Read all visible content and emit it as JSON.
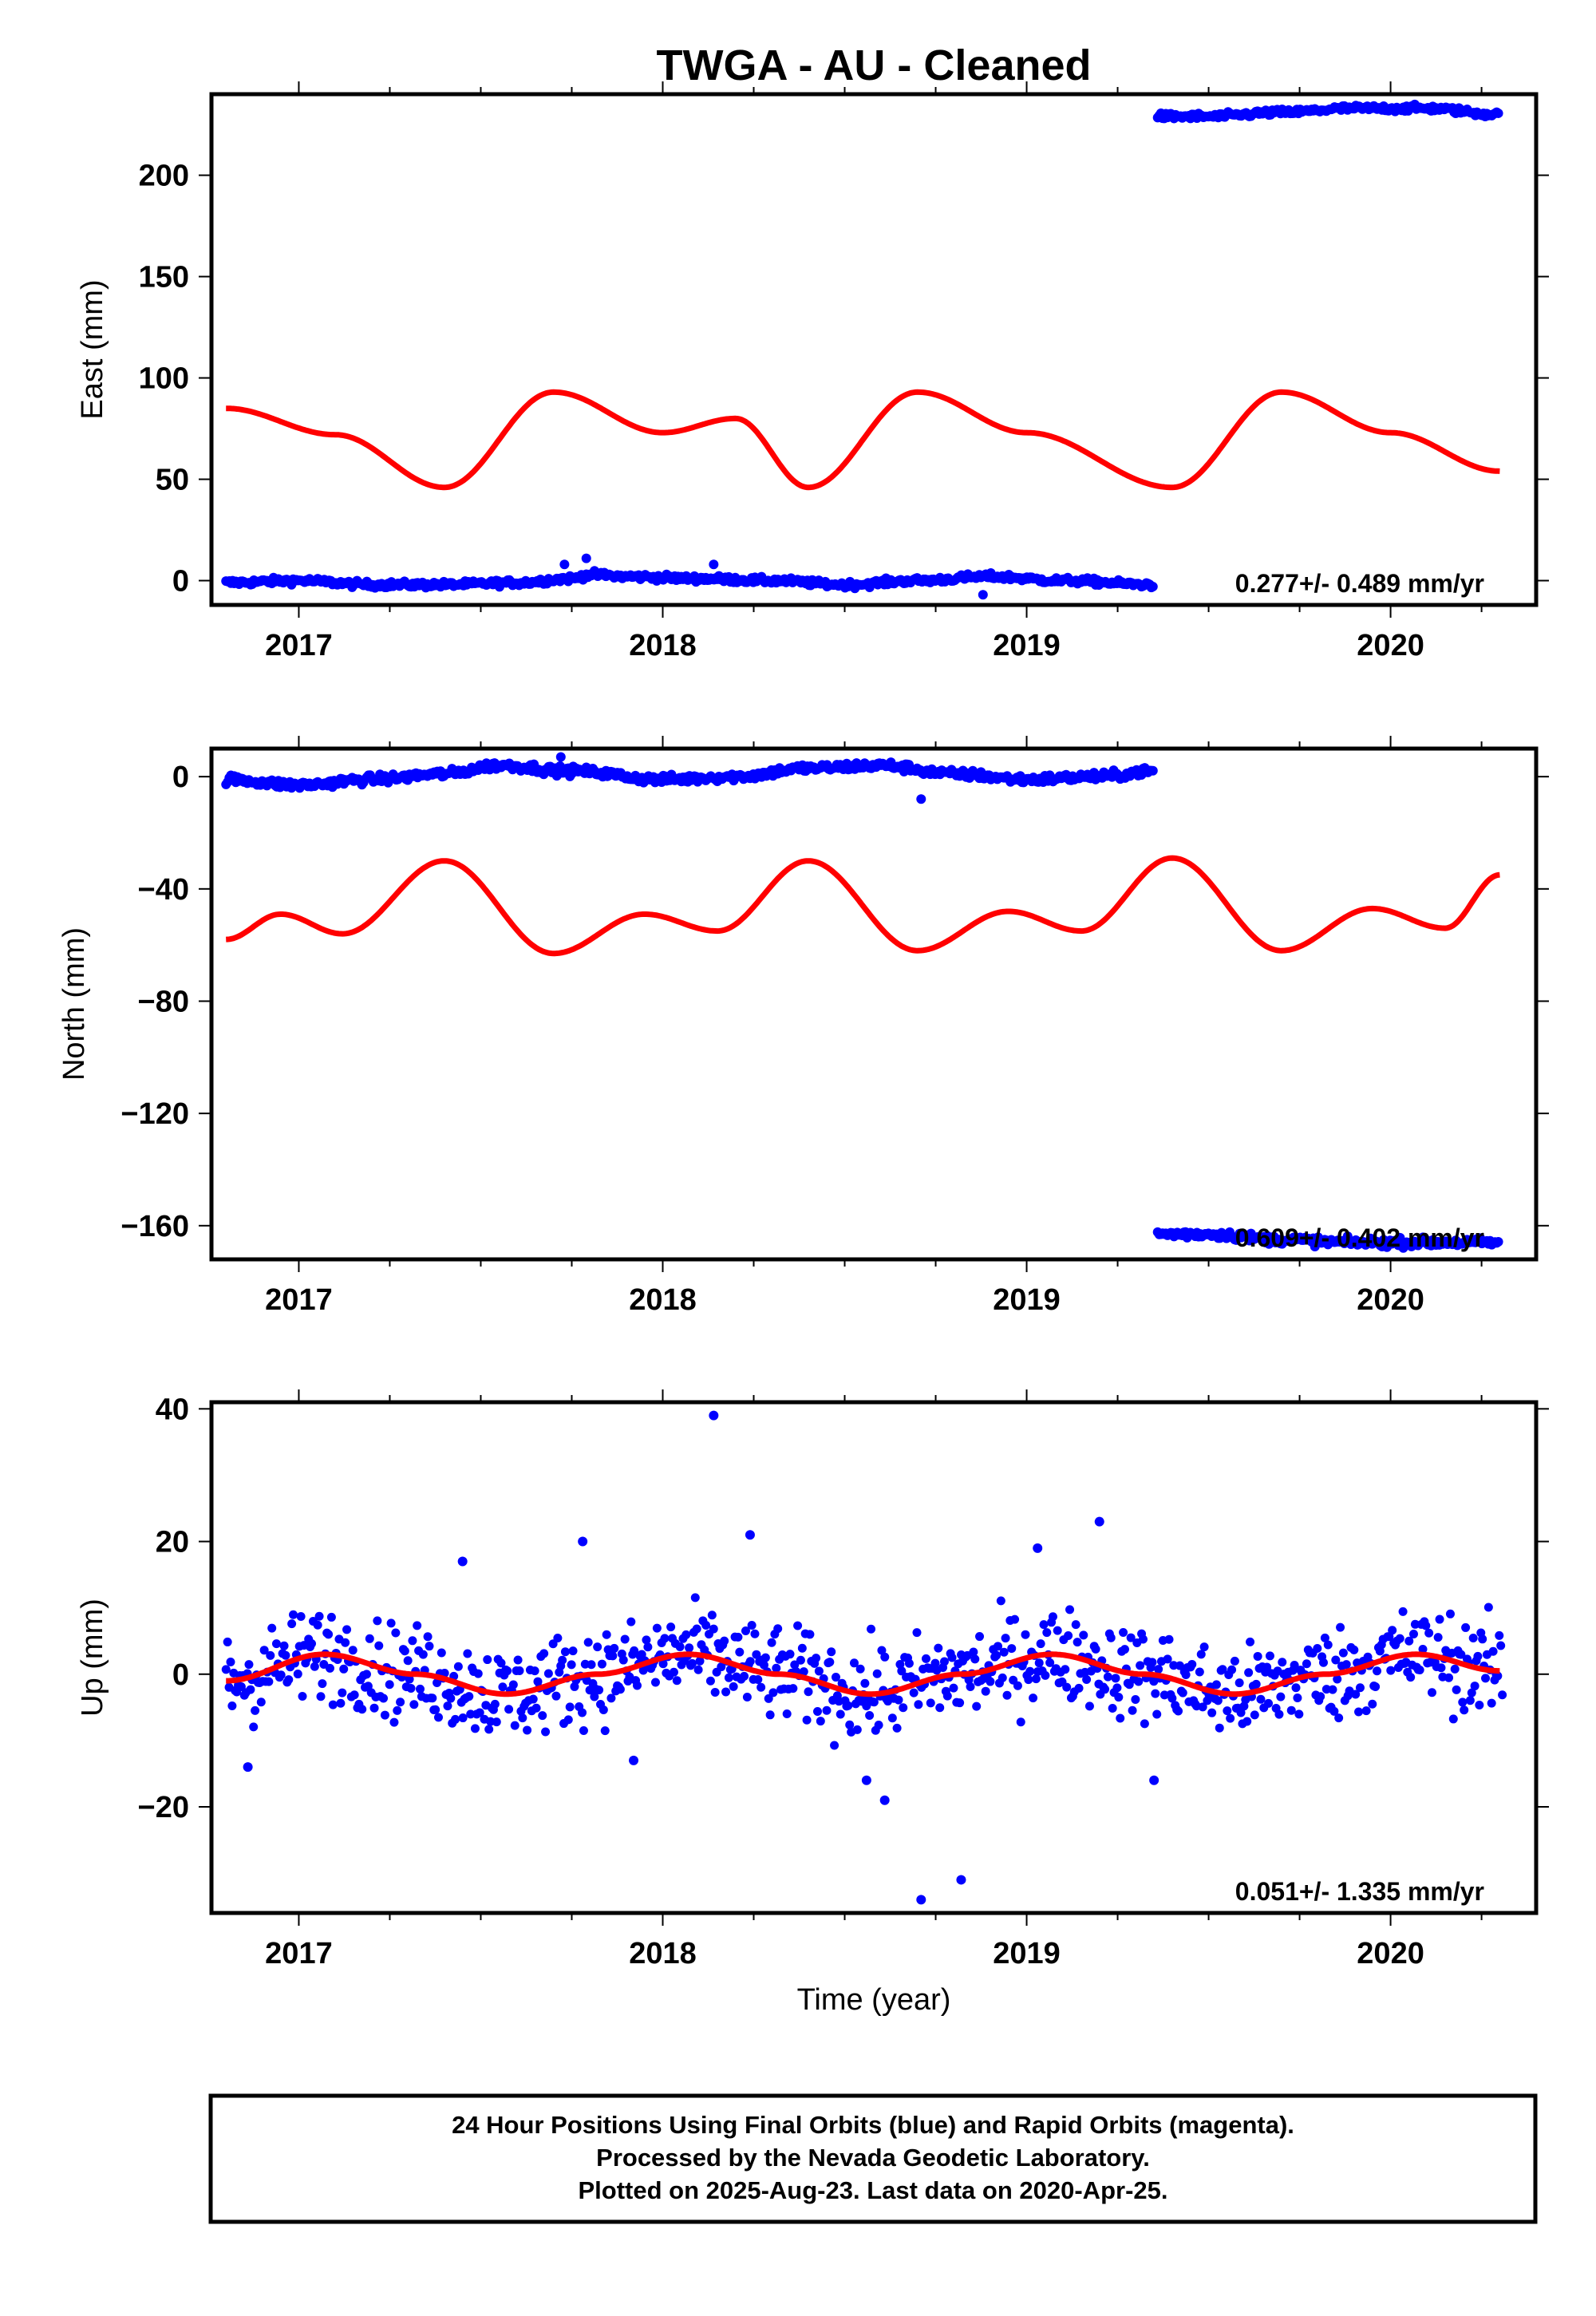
{
  "title": "TWGA  - AU - Cleaned",
  "colors": {
    "final": "#0000ff",
    "model": "#ff0000",
    "frame": "#000000"
  },
  "chart_data": [
    {
      "type": "scatter",
      "panel": "east",
      "ylabel": "East (mm)",
      "xlabel": "",
      "xlim": [
        2016.76,
        2020.4
      ],
      "ylim": [
        -12,
        240
      ],
      "xticks": [
        2017,
        2018,
        2019,
        2020
      ],
      "yticks": [
        0,
        50,
        100,
        150,
        200
      ],
      "ytick_labels": [
        "0",
        "50",
        "100",
        "150",
        "200"
      ],
      "rate_label": "0.277+/- 0.489 mm/yr",
      "segments": [
        {
          "x": [
            2016.8,
            2017.0,
            2017.2,
            2017.4,
            2017.6,
            2017.75,
            2017.8,
            2017.9,
            2018.1,
            2018.3,
            2018.5,
            2018.7,
            2018.9,
            2019.1,
            2019.35
          ],
          "y": [
            -1,
            0,
            -2,
            -2,
            -1,
            1,
            3,
            2,
            1,
            0,
            -2,
            0,
            2,
            0,
            -2
          ]
        },
        {
          "x": [
            2019.36,
            2019.5,
            2019.7,
            2019.9,
            2020.1,
            2020.3
          ],
          "y": [
            229,
            229,
            231,
            233,
            233,
            230
          ]
        }
      ],
      "outliers": {
        "x": [
          2017.73,
          2017.79,
          2018.14,
          2018.88
        ],
        "y": [
          8,
          11,
          8,
          -7
        ]
      },
      "model": {
        "x": [
          2016.8,
          2017.1,
          2017.4,
          2017.7,
          2018.0,
          2018.2,
          2018.4,
          2018.7,
          2019.0,
          2019.4,
          2019.7,
          2020.0,
          2020.3
        ],
        "y": [
          85,
          72,
          46,
          93,
          73,
          80,
          46,
          93,
          73,
          46,
          93,
          73,
          54
        ]
      }
    },
    {
      "type": "scatter",
      "panel": "north",
      "ylabel": "North (mm)",
      "xlabel": "",
      "xlim": [
        2016.76,
        2020.4
      ],
      "ylim": [
        -172,
        10
      ],
      "xticks": [
        2017,
        2018,
        2019,
        2020
      ],
      "yticks": [
        0,
        -40,
        -80,
        -120,
        -160
      ],
      "ytick_labels": [
        "0",
        "−40",
        "−80",
        "−120",
        "−160"
      ],
      "rate_label": "0.609+/- 0.402 mm/yr",
      "segments": [
        {
          "x": [
            2016.8,
            2017.0,
            2017.2,
            2017.4,
            2017.55,
            2017.75,
            2018.0,
            2018.2,
            2018.4,
            2018.6,
            2018.8,
            2019.0,
            2019.2,
            2019.35
          ],
          "y": [
            -1,
            -3,
            -1,
            1,
            4,
            2,
            -1,
            0,
            3,
            4,
            1,
            -1,
            0,
            2
          ]
        },
        {
          "x": [
            2019.36,
            2019.5,
            2019.7,
            2019.9,
            2020.1,
            2020.3
          ],
          "y": [
            -163,
            -163,
            -165,
            -166,
            -166,
            -166
          ]
        }
      ],
      "outliers": {
        "x": [
          2017.72,
          2018.71
        ],
        "y": [
          7,
          -8
        ]
      },
      "model": {
        "x": [
          2016.8,
          2016.95,
          2017.12,
          2017.4,
          2017.7,
          2017.95,
          2018.15,
          2018.4,
          2018.7,
          2018.95,
          2019.15,
          2019.4,
          2019.7,
          2019.95,
          2020.15,
          2020.3
        ],
        "y": [
          -58,
          -49,
          -56,
          -30,
          -63,
          -49,
          -55,
          -30,
          -62,
          -48,
          -55,
          -29,
          -62,
          -47,
          -54,
          -35
        ]
      }
    },
    {
      "type": "scatter",
      "panel": "up",
      "ylabel": "Up (mm)",
      "xlabel": "Time (year)",
      "xlim": [
        2016.76,
        2020.4
      ],
      "ylim": [
        -36,
        41
      ],
      "xticks": [
        2017,
        2018,
        2019,
        2020
      ],
      "yticks": [
        40,
        20,
        0,
        -20
      ],
      "ytick_labels": [
        "40",
        "20",
        "0",
        "−20"
      ],
      "rate_label": "0.051+/- 1.335 mm/yr",
      "segments": [],
      "outliers": {
        "x": [
          2018.14,
          2018.71,
          2018.82,
          2017.45,
          2017.78,
          2018.24,
          2019.2,
          2019.03,
          2019.35,
          2018.56,
          2016.86,
          2018.61,
          2017.92
        ],
        "y": [
          39,
          -34,
          -31,
          17,
          20,
          21,
          23,
          19,
          -16,
          -16,
          -14,
          -19,
          -13
        ]
      },
      "model": {
        "x": [
          2016.8,
          2017.07,
          2017.32,
          2017.57,
          2017.82,
          2018.07,
          2018.32,
          2018.57,
          2018.82,
          2019.07,
          2019.32,
          2019.57,
          2019.82,
          2020.07,
          2020.3
        ],
        "y": [
          -1,
          3,
          0,
          -3,
          0,
          3,
          0,
          -3,
          0,
          3,
          0,
          -3,
          0,
          3,
          0.5
        ]
      },
      "scatter_spread_mm": 5
    }
  ],
  "footer": {
    "line1": "24 Hour Positions Using Final Orbits (blue) and Rapid Orbits (magenta).",
    "line2": "Processed by the Nevada Geodetic Laboratory.",
    "line3": "Plotted on 2025-Aug-23. Last data on 2020-Apr-25."
  }
}
